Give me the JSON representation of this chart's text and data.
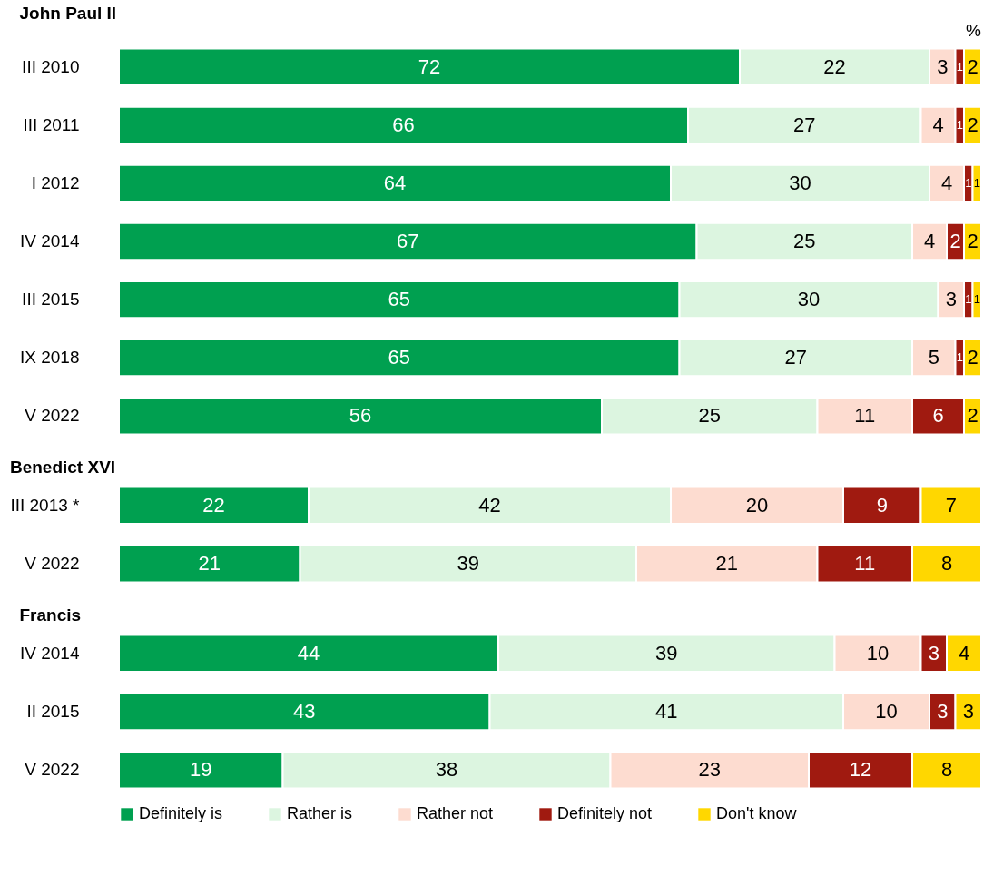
{
  "chart_data": [
    {
      "type": "bar",
      "title": "John Paul II",
      "orientation": "horizontal",
      "stacked": true,
      "data_labels": true,
      "legend": "bottom",
      "annotations": [
        "%"
      ],
      "categories": [
        "III 2010",
        "III 2011",
        "I 2012",
        "IV 2014",
        "III 2015",
        "IX 2018",
        "V 2022"
      ],
      "series": [
        {
          "name": "Definitely is",
          "color": "#00a050",
          "values": [
            72,
            66,
            64,
            67,
            65,
            65,
            56
          ]
        },
        {
          "name": "Rather is",
          "color": "#dcf5e0",
          "values": [
            22,
            27,
            30,
            25,
            30,
            27,
            25
          ]
        },
        {
          "name": "Rather not",
          "color": "#fddcd0",
          "values": [
            3,
            4,
            4,
            4,
            3,
            5,
            11
          ]
        },
        {
          "name": "Definitely not",
          "color": "#a01a10",
          "values": [
            1,
            1,
            1,
            2,
            1,
            1,
            6
          ]
        },
        {
          "name": "Don't know",
          "color": "#ffd700",
          "values": [
            2,
            2,
            1,
            2,
            1,
            2,
            2
          ]
        }
      ]
    },
    {
      "type": "bar",
      "title": "Benedict XVI",
      "orientation": "horizontal",
      "stacked": true,
      "data_labels": true,
      "categories": [
        "III 2013 *",
        "V 2022"
      ],
      "series": [
        {
          "color": "#00a050",
          "values": [
            22,
            21
          ]
        },
        {
          "color": "#dcf5e0",
          "values": [
            42,
            39
          ]
        },
        {
          "color": "#fddcd0",
          "values": [
            20,
            21
          ]
        },
        {
          "color": "#a01a10",
          "values": [
            9,
            11
          ]
        },
        {
          "color": "#ffd700",
          "values": [
            7,
            8
          ]
        }
      ]
    },
    {
      "type": "bar",
      "title": "Francis",
      "orientation": "horizontal",
      "stacked": true,
      "data_labels": true,
      "categories": [
        "IV 2014",
        "II 2015",
        "V 2022"
      ],
      "series": [
        {
          "color": "#00a050",
          "values": [
            44,
            43,
            19
          ]
        },
        {
          "color": "#dcf5e0",
          "values": [
            39,
            41,
            38
          ]
        },
        {
          "color": "#fddcd0",
          "values": [
            10,
            10,
            23
          ]
        },
        {
          "color": "#a01a10",
          "values": [
            3,
            3,
            12
          ]
        },
        {
          "color": "#ffd700",
          "values": [
            4,
            3,
            8
          ]
        }
      ]
    }
  ]
}
